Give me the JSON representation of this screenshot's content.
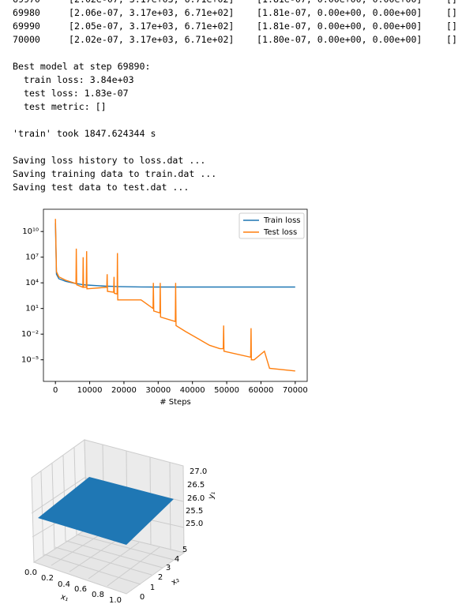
{
  "log_rows": [
    [
      "69970",
      "[2.02e-07, 3.17e+03, 6.71e+02]",
      "[1.81e-07, 0.00e+00, 0.00e+00]",
      "[]"
    ],
    [
      "69980",
      "[2.06e-07, 3.17e+03, 6.71e+02]",
      "[1.81e-07, 0.00e+00, 0.00e+00]",
      "[]"
    ],
    [
      "69990",
      "[2.05e-07, 3.17e+03, 6.71e+02]",
      "[1.81e-07, 0.00e+00, 0.00e+00]",
      "[]"
    ],
    [
      "70000",
      "[2.02e-07, 3.17e+03, 6.71e+02]",
      "[1.80e-07, 0.00e+00, 0.00e+00]",
      "[]"
    ]
  ],
  "summary_lines": [
    "Best model at step 69890:",
    "  train loss: 3.84e+03",
    "  test loss: 1.83e-07",
    "  test metric: []",
    "'train' took 1847.624344 s",
    "Saving loss history to loss.dat ...",
    "Saving training data to train.dat ...",
    "Saving test data to test.dat ..."
  ],
  "chart_data": {
    "type": "line",
    "x_label": "# Steps",
    "log_y": true,
    "legend": "upper right",
    "xlim": [
      -3500,
      73500
    ],
    "ylim": [
      3e-08,
      4000000000000.0
    ],
    "xticks": [
      0,
      10000,
      20000,
      30000,
      40000,
      50000,
      60000,
      70000
    ],
    "yticks": [
      {
        "value": 1e-05,
        "label": "10⁻⁵"
      },
      {
        "value": 0.01,
        "label": "10⁻²"
      },
      {
        "value": 10,
        "label": "10¹"
      },
      {
        "value": 10000.0,
        "label": "10⁴"
      },
      {
        "value": 10000000.0,
        "label": "10⁷"
      },
      {
        "value": 10000000000.0,
        "label": "10¹⁰"
      }
    ],
    "x": [
      0,
      300,
      1000,
      3000,
      6000,
      6100,
      6200,
      8000,
      8100,
      8200,
      9000,
      9100,
      9200,
      15000,
      15100,
      15200,
      17000,
      17100,
      17200,
      18000,
      18100,
      18200,
      25000,
      28500,
      28600,
      28700,
      30500,
      30600,
      30700,
      35000,
      35100,
      35200,
      38000,
      45000,
      48000,
      49000,
      49100,
      49200,
      57000,
      57100,
      57200,
      58000,
      61000,
      62500,
      70000
    ],
    "series": [
      {
        "name": "Train loss",
        "color": "#1f77b4",
        "values": [
          100000000000.0,
          100000.0,
          30000.0,
          15000.0,
          8000,
          8000,
          8000,
          6000,
          6000,
          6000,
          5500,
          5500,
          5500,
          4000,
          4000,
          4000,
          3800,
          3800,
          3800,
          3700,
          3700,
          3700,
          3300,
          3200,
          3200,
          3200,
          3200,
          3200,
          3200,
          3200,
          3200,
          3200,
          3200,
          3200,
          3200,
          3200,
          3200,
          3200,
          3200,
          3200,
          3200,
          3200,
          3200,
          3200,
          3200
        ]
      },
      {
        "name": "Test loss",
        "color": "#ff7f0e",
        "values": [
          300000000000.0,
          200000.0,
          50000.0,
          20000.0,
          8000,
          100000000.0,
          6000,
          3000,
          10000000.0,
          3000,
          3000,
          50000000.0,
          2000,
          3000,
          100000.0,
          1000,
          800,
          50000.0,
          600,
          500,
          30000000.0,
          100,
          100,
          10,
          10000,
          5,
          3,
          10000,
          1,
          0.3,
          10000,
          0.1,
          0.02,
          0.0005,
          0.0002,
          0.0002,
          0.1,
          0.0001,
          2e-05,
          0.05,
          1e-05,
          1e-05,
          0.0001,
          1e-06,
          5e-07
        ]
      }
    ]
  },
  "surface_plot": {
    "x1_label": "x₁",
    "x2_label": "x₂",
    "y1_label": "y₁",
    "x1_ticks": [
      "0.0",
      "0.2",
      "0.4",
      "0.6",
      "0.8",
      "1.0"
    ],
    "x2_ticks": [
      "0",
      "1",
      "2",
      "3",
      "4",
      "5"
    ],
    "y1_ticks": [
      "25.0",
      "25.5",
      "26.0",
      "26.5",
      "27.0"
    ]
  }
}
